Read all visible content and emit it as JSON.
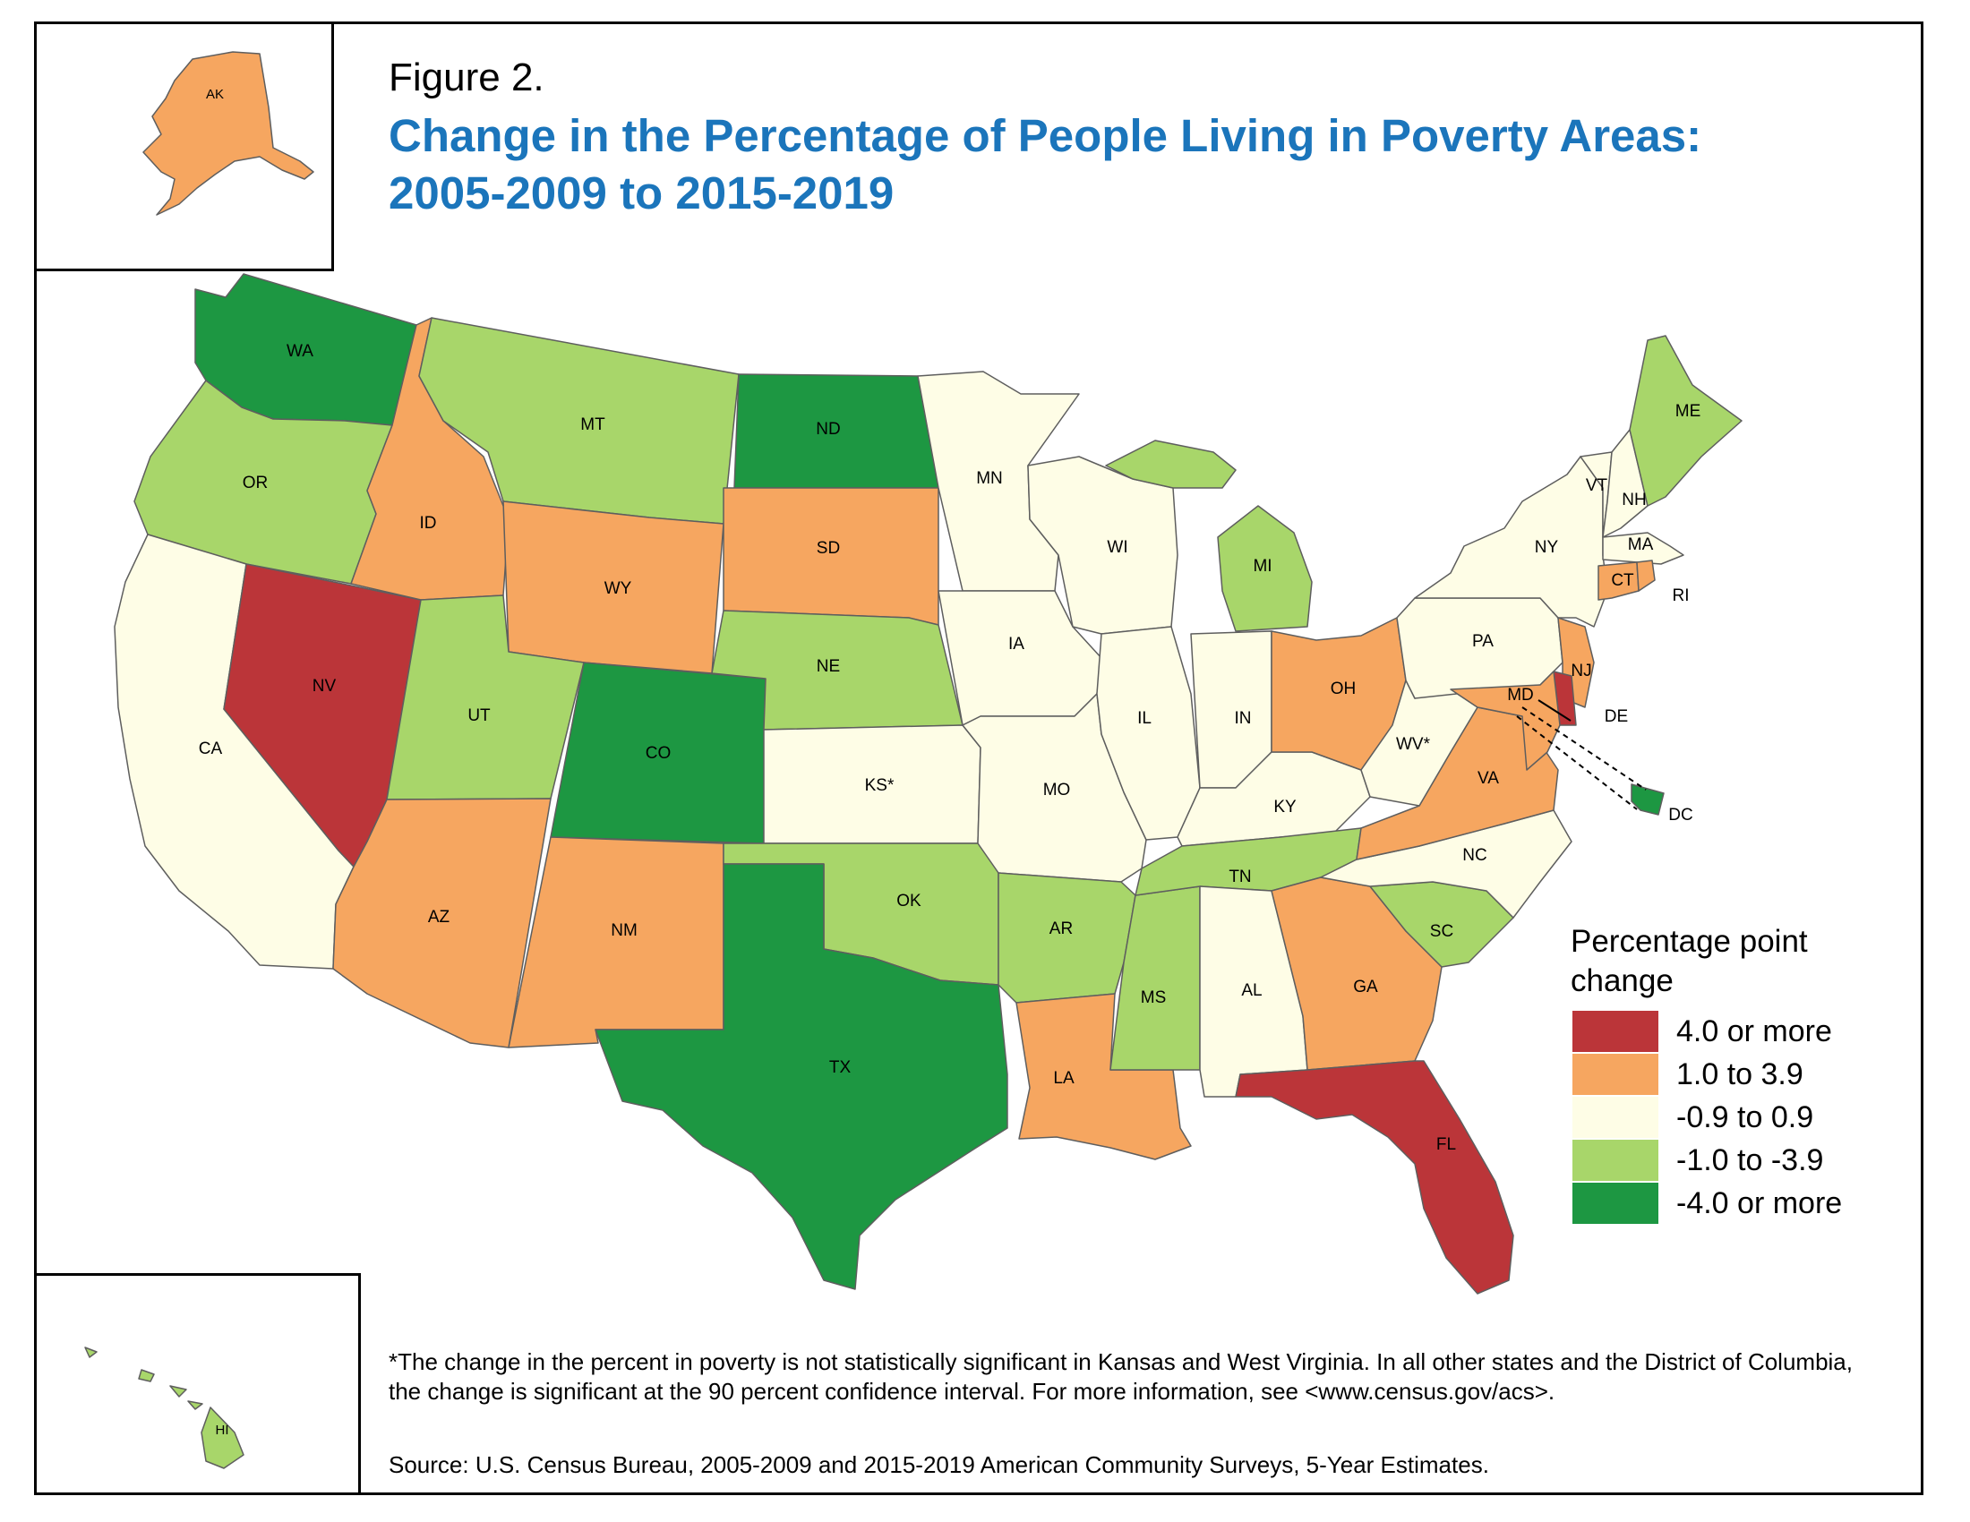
{
  "figure_label": "Figure 2.",
  "title": "Change in the Percentage of People Living in Poverty Areas: 2005-2009 to 2015-2019",
  "colors": {
    "4.0 or more": "#bb3539",
    "1.0 to 3.9": "#f6a660",
    "-0.9 to 0.9": "#fefde6",
    "-1.0 to -3.9": "#a8d66a",
    "-4.0 or more": "#1d9742",
    "border": "#5e5e5e",
    "title": "#1b75bb"
  },
  "legend": {
    "title": "Percentage point change",
    "items": [
      {
        "label": "4.0 or more",
        "class": "4.0 or more"
      },
      {
        "label": "1.0 to 3.9",
        "class": "1.0 to 3.9"
      },
      {
        "label": "-0.9 to 0.9",
        "class": "-0.9 to 0.9"
      },
      {
        "label": "-1.0 to -3.9",
        "class": "-1.0 to -3.9"
      },
      {
        "label": "-4.0 or more",
        "class": "-4.0 or more"
      }
    ]
  },
  "states": [
    {
      "id": "WA",
      "label": "WA",
      "class": "-4.0 or more"
    },
    {
      "id": "OR",
      "label": "OR",
      "class": "-1.0 to -3.9"
    },
    {
      "id": "CA",
      "label": "CA",
      "class": "-0.9 to 0.9"
    },
    {
      "id": "NV",
      "label": "NV",
      "class": "4.0 or more"
    },
    {
      "id": "ID",
      "label": "ID",
      "class": "1.0 to 3.9"
    },
    {
      "id": "MT",
      "label": "MT",
      "class": "-1.0 to -3.9"
    },
    {
      "id": "WY",
      "label": "WY",
      "class": "1.0 to 3.9"
    },
    {
      "id": "UT",
      "label": "UT",
      "class": "-1.0 to -3.9"
    },
    {
      "id": "AZ",
      "label": "AZ",
      "class": "1.0 to 3.9"
    },
    {
      "id": "CO",
      "label": "CO",
      "class": "-4.0 or more"
    },
    {
      "id": "NM",
      "label": "NM",
      "class": "1.0 to 3.9"
    },
    {
      "id": "ND",
      "label": "ND",
      "class": "-4.0 or more"
    },
    {
      "id": "SD",
      "label": "SD",
      "class": "1.0 to 3.9"
    },
    {
      "id": "NE",
      "label": "NE",
      "class": "-1.0 to -3.9"
    },
    {
      "id": "KS",
      "label": "KS*",
      "class": "-0.9 to 0.9"
    },
    {
      "id": "OK",
      "label": "OK",
      "class": "-1.0 to -3.9"
    },
    {
      "id": "TX",
      "label": "TX",
      "class": "-4.0 or more"
    },
    {
      "id": "MN",
      "label": "MN",
      "class": "-0.9 to 0.9"
    },
    {
      "id": "IA",
      "label": "IA",
      "class": "-0.9 to 0.9"
    },
    {
      "id": "MO",
      "label": "MO",
      "class": "-0.9 to 0.9"
    },
    {
      "id": "AR",
      "label": "AR",
      "class": "-1.0 to -3.9"
    },
    {
      "id": "LA",
      "label": "LA",
      "class": "1.0 to 3.9"
    },
    {
      "id": "WI",
      "label": "WI",
      "class": "-0.9 to 0.9"
    },
    {
      "id": "IL",
      "label": "IL",
      "class": "-0.9 to 0.9"
    },
    {
      "id": "MS",
      "label": "MS",
      "class": "-1.0 to -3.9"
    },
    {
      "id": "MI",
      "label": "MI",
      "class": "-1.0 to -3.9"
    },
    {
      "id": "IN",
      "label": "IN",
      "class": "-0.9 to 0.9"
    },
    {
      "id": "KY",
      "label": "KY",
      "class": "-0.9 to 0.9"
    },
    {
      "id": "TN",
      "label": "TN",
      "class": "-1.0 to -3.9"
    },
    {
      "id": "AL",
      "label": "AL",
      "class": "-0.9 to 0.9"
    },
    {
      "id": "OH",
      "label": "OH",
      "class": "1.0 to 3.9"
    },
    {
      "id": "GA",
      "label": "GA",
      "class": "1.0 to 3.9"
    },
    {
      "id": "FL",
      "label": "FL",
      "class": "4.0 or more"
    },
    {
      "id": "SC",
      "label": "SC",
      "class": "-1.0 to -3.9"
    },
    {
      "id": "NC",
      "label": "NC",
      "class": "-0.9 to 0.9"
    },
    {
      "id": "VA",
      "label": "VA",
      "class": "1.0 to 3.9"
    },
    {
      "id": "WV",
      "label": "WV*",
      "class": "-0.9 to 0.9"
    },
    {
      "id": "PA",
      "label": "PA",
      "class": "-0.9 to 0.9"
    },
    {
      "id": "NY",
      "label": "NY",
      "class": "-0.9 to 0.9"
    },
    {
      "id": "VT",
      "label": "VT",
      "class": "-0.9 to 0.9"
    },
    {
      "id": "NH",
      "label": "NH",
      "class": "-0.9 to 0.9"
    },
    {
      "id": "ME",
      "label": "ME",
      "class": "-1.0 to -3.9"
    },
    {
      "id": "MA",
      "label": "MA",
      "class": "-0.9 to 0.9"
    },
    {
      "id": "CT",
      "label": "CT",
      "class": "1.0 to 3.9"
    },
    {
      "id": "RI",
      "label": "RI",
      "class": "1.0 to 3.9"
    },
    {
      "id": "NJ",
      "label": "NJ",
      "class": "1.0 to 3.9"
    },
    {
      "id": "DE",
      "label": "DE",
      "class": "4.0 or more"
    },
    {
      "id": "MD",
      "label": "MD",
      "class": "1.0 to 3.9"
    },
    {
      "id": "DC",
      "label": "DC",
      "class": "-4.0 or more"
    },
    {
      "id": "AK",
      "label": "AK",
      "class": "1.0 to 3.9"
    },
    {
      "id": "HI",
      "label": "HI",
      "class": "-1.0 to -3.9"
    }
  ],
  "footnote": "*The change in the percent in poverty is not statistically significant in Kansas and West Virginia. In all other states and the District of Columbia, the change is significant at the 90 percent confidence interval. For more information, see <www.census.gov/acs>.",
  "source": "Source: U.S. Census Bureau, 2005-2009 and 2015-2019 American Community Surveys, 5-Year Estimates."
}
